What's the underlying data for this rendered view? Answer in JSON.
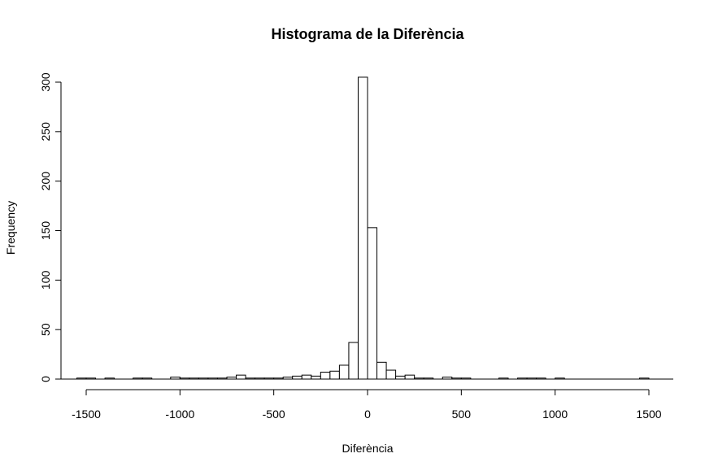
{
  "chart_data": {
    "type": "bar",
    "title": "Histograma de la Diferència",
    "xlabel": "Diferència",
    "ylabel": "Frequency",
    "xlim": [
      -1550,
      1600
    ],
    "ylim": [
      0,
      305
    ],
    "xticks": [
      -1500,
      -1000,
      -500,
      0,
      500,
      1000,
      1500
    ],
    "yticks": [
      0,
      50,
      100,
      150,
      200,
      250,
      300
    ],
    "bin_width": 50,
    "bins": [
      {
        "x0": -1550,
        "x1": -1500,
        "count": 1
      },
      {
        "x0": -1500,
        "x1": -1450,
        "count": 1
      },
      {
        "x0": -1400,
        "x1": -1350,
        "count": 1
      },
      {
        "x0": -1250,
        "x1": -1200,
        "count": 1
      },
      {
        "x0": -1200,
        "x1": -1150,
        "count": 1
      },
      {
        "x0": -1050,
        "x1": -1000,
        "count": 2
      },
      {
        "x0": -1000,
        "x1": -950,
        "count": 1
      },
      {
        "x0": -950,
        "x1": -900,
        "count": 1
      },
      {
        "x0": -900,
        "x1": -850,
        "count": 1
      },
      {
        "x0": -850,
        "x1": -800,
        "count": 1
      },
      {
        "x0": -800,
        "x1": -750,
        "count": 1
      },
      {
        "x0": -750,
        "x1": -700,
        "count": 2
      },
      {
        "x0": -700,
        "x1": -650,
        "count": 4
      },
      {
        "x0": -650,
        "x1": -600,
        "count": 1
      },
      {
        "x0": -600,
        "x1": -550,
        "count": 1
      },
      {
        "x0": -550,
        "x1": -500,
        "count": 1
      },
      {
        "x0": -500,
        "x1": -450,
        "count": 1
      },
      {
        "x0": -450,
        "x1": -400,
        "count": 2
      },
      {
        "x0": -400,
        "x1": -350,
        "count": 3
      },
      {
        "x0": -350,
        "x1": -300,
        "count": 4
      },
      {
        "x0": -300,
        "x1": -250,
        "count": 3
      },
      {
        "x0": -250,
        "x1": -200,
        "count": 7
      },
      {
        "x0": -200,
        "x1": -150,
        "count": 8
      },
      {
        "x0": -150,
        "x1": -100,
        "count": 14
      },
      {
        "x0": -100,
        "x1": -50,
        "count": 37
      },
      {
        "x0": -50,
        "x1": 0,
        "count": 305
      },
      {
        "x0": 0,
        "x1": 50,
        "count": 153
      },
      {
        "x0": 50,
        "x1": 100,
        "count": 17
      },
      {
        "x0": 100,
        "x1": 150,
        "count": 9
      },
      {
        "x0": 150,
        "x1": 200,
        "count": 3
      },
      {
        "x0": 200,
        "x1": 250,
        "count": 4
      },
      {
        "x0": 250,
        "x1": 300,
        "count": 1
      },
      {
        "x0": 300,
        "x1": 350,
        "count": 1
      },
      {
        "x0": 400,
        "x1": 450,
        "count": 2
      },
      {
        "x0": 450,
        "x1": 500,
        "count": 1
      },
      {
        "x0": 500,
        "x1": 550,
        "count": 1
      },
      {
        "x0": 700,
        "x1": 750,
        "count": 1
      },
      {
        "x0": 800,
        "x1": 850,
        "count": 1
      },
      {
        "x0": 850,
        "x1": 900,
        "count": 1
      },
      {
        "x0": 900,
        "x1": 950,
        "count": 1
      },
      {
        "x0": 1000,
        "x1": 1050,
        "count": 1
      },
      {
        "x0": 1450,
        "x1": 1500,
        "count": 1
      }
    ]
  }
}
